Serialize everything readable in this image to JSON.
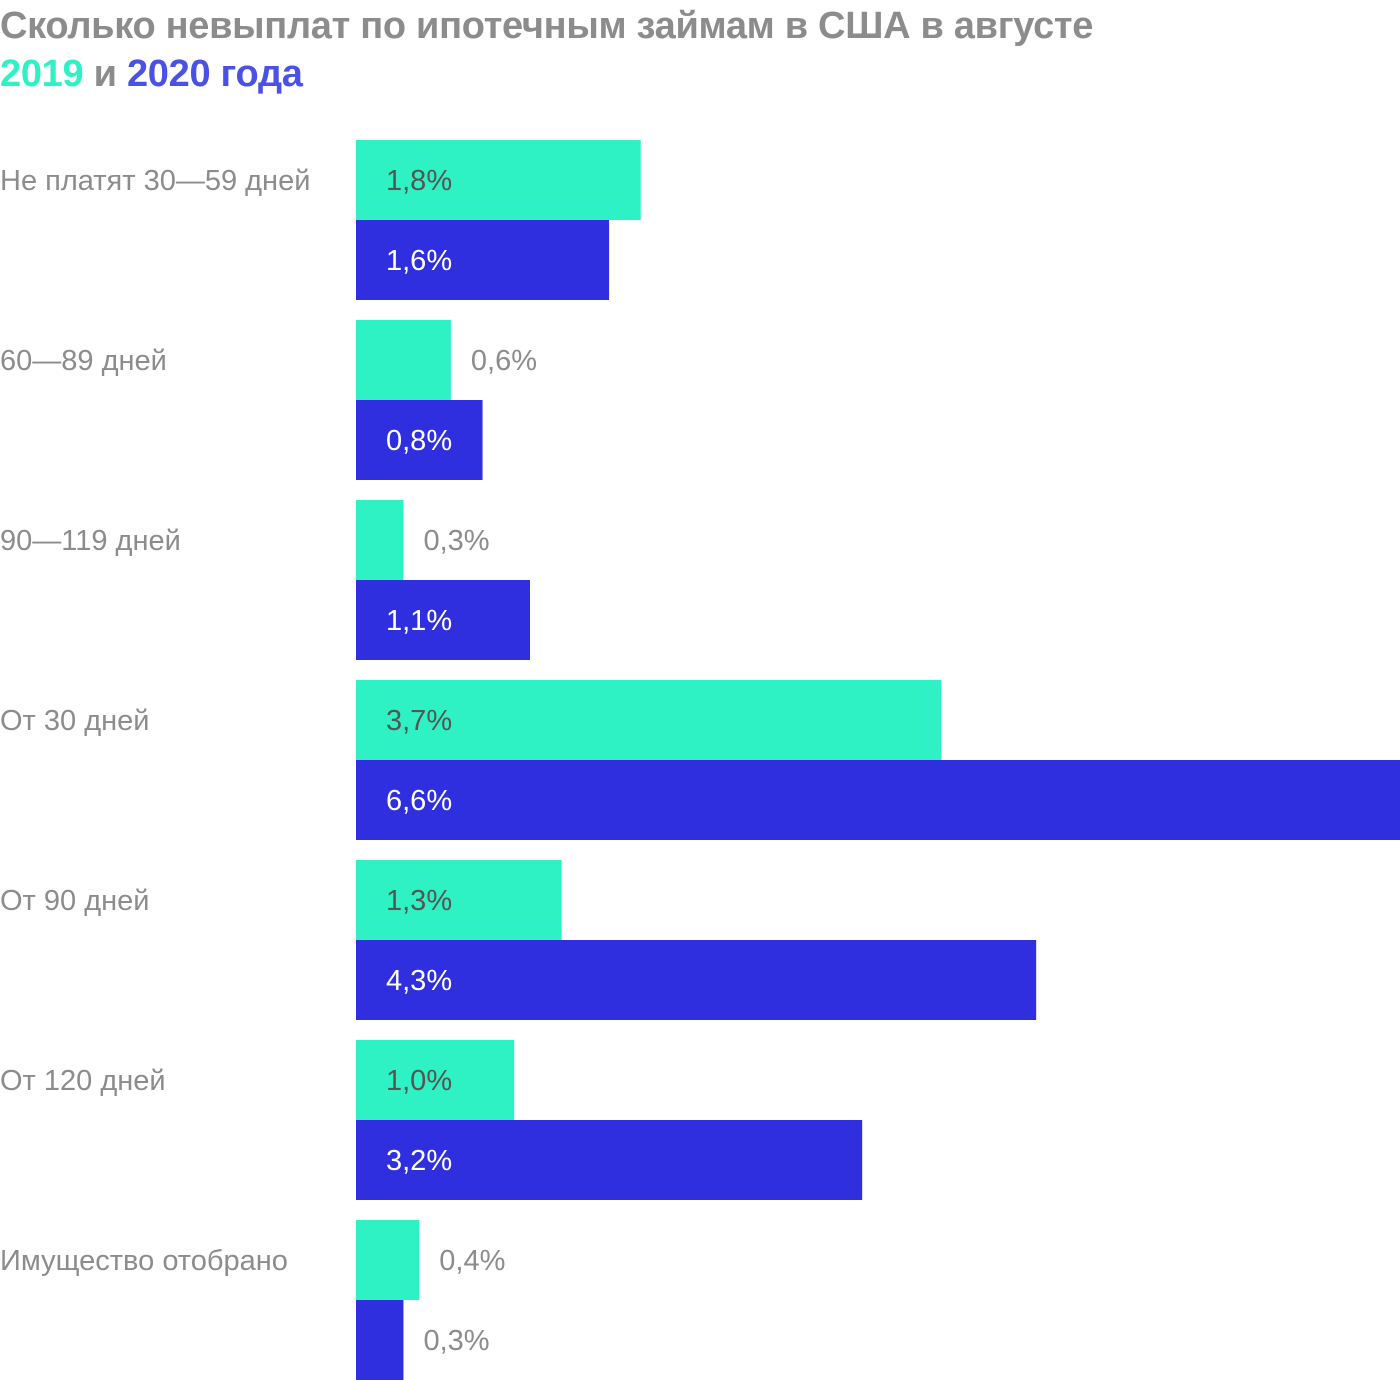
{
  "title": {
    "line1": "Сколько невыплат по ипотечным займам в США в августе",
    "year_a": "2019",
    "conjunction": "и",
    "year_b": "2020 года"
  },
  "colors": {
    "series_2019": "#2ff2c4",
    "series_2020": "#2f2fe0",
    "label_gray": "#8c8c8c",
    "title_gray": "#8c8c8c"
  },
  "chart_data": {
    "type": "bar",
    "orientation": "horizontal",
    "categories": [
      "Не платят 30—59 дней",
      "60—89 дней",
      "90—119 дней",
      "От 30 дней",
      "От 90 дней",
      "От 120 дней",
      "Имущество отобрано"
    ],
    "series": [
      {
        "name": "2019",
        "color": "#2ff2c4",
        "values": [
          1.8,
          0.6,
          0.3,
          3.7,
          1.3,
          1.0,
          0.4
        ],
        "labels": [
          "1,8%",
          "0,6%",
          "0,3%",
          "3,7%",
          "1,3%",
          "1,0%",
          "0,4%"
        ]
      },
      {
        "name": "2020",
        "color": "#2f2fe0",
        "values": [
          1.6,
          0.8,
          1.1,
          6.6,
          4.3,
          3.2,
          0.3
        ],
        "labels": [
          "1,6%",
          "0,8%",
          "1,1%",
          "6,6%",
          "4,3%",
          "3,2%",
          "0,3%"
        ]
      }
    ],
    "xlim": [
      0,
      6.6
    ],
    "grid": false,
    "legend": "in title"
  }
}
